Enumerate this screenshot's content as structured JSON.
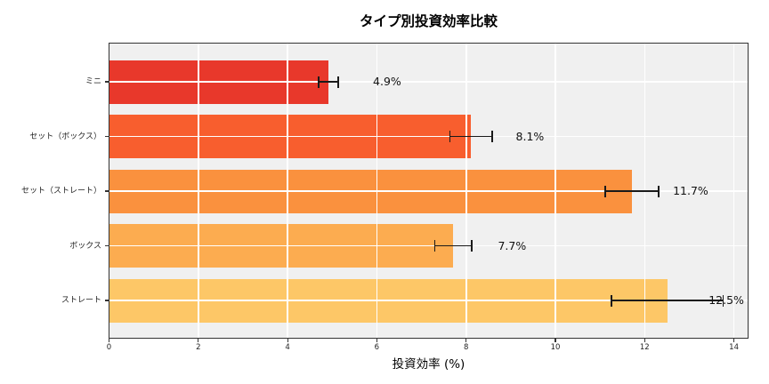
{
  "chart_data": {
    "type": "bar",
    "orientation": "horizontal",
    "title": "タイプ別投資効率比較",
    "xlabel": "投資効率 (%)",
    "categories": [
      "ミニ",
      "セット（ボックス）",
      "セット（ストレート）",
      "ボックス",
      "ストレート"
    ],
    "values": [
      4.9,
      8.1,
      11.7,
      7.7,
      12.5
    ],
    "errors": [
      0.22,
      0.47,
      0.6,
      0.41,
      1.25
    ],
    "value_labels": [
      "4.9%",
      "8.1%",
      "11.7%",
      "7.7%",
      "12.5%"
    ],
    "bar_colors": [
      "#E8382B",
      "#F85E2E",
      "#FA913E",
      "#FCAC50",
      "#FDC767"
    ],
    "xticks": [
      0,
      2,
      4,
      6,
      8,
      10,
      12,
      14
    ],
    "xtick_labels": [
      "0",
      "2",
      "4",
      "6",
      "8",
      "10",
      "12",
      "14"
    ],
    "xlim": [
      0,
      14.33
    ],
    "grid": true,
    "legend": false,
    "plot_bg_color": "#F0F0F0",
    "grid_color": "#FFFFFF",
    "error_bar_color": "#1A1A1A",
    "axis_border_color": "#333333"
  }
}
